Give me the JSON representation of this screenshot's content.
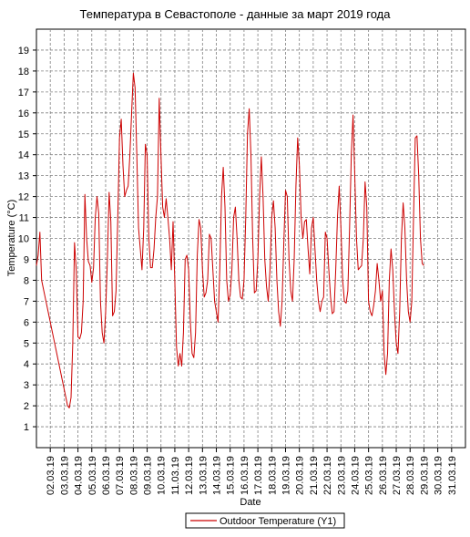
{
  "chart_data": {
    "type": "line",
    "title": "Температура в Севастополе - данные за март 2019 года",
    "xlabel": "Date",
    "ylabel": "Temperature (°C)",
    "ylim": [
      0,
      20
    ],
    "yticks": [
      1,
      2,
      3,
      4,
      5,
      6,
      7,
      8,
      9,
      10,
      11,
      12,
      13,
      14,
      15,
      16,
      17,
      18,
      19
    ],
    "x_range": [
      "01.03.19",
      "31.03.19 (end)"
    ],
    "x_ticks": [
      "02.03.19",
      "03.03.19",
      "04.03.19",
      "05.03.19",
      "06.03.19",
      "07.03.19",
      "08.03.19",
      "09.03.19",
      "10.03.19",
      "11.03.19",
      "12.03.19",
      "13.03.19",
      "14.03.19",
      "15.03.19",
      "16.03.19",
      "17.03.19",
      "18.03.19",
      "19.03.19",
      "20.03.19",
      "21.03.19",
      "22.03.19",
      "23.03.19",
      "24.03.19",
      "25.03.19",
      "26.03.19",
      "27.03.19",
      "28.03.19",
      "29.03.19",
      "30.03.19",
      "31.03.19"
    ],
    "grid": true,
    "legend_position": "bottom-center",
    "series": [
      {
        "name": "Outdoor Temperature (Y1)",
        "color": "#cc0000",
        "day_start": 1.0,
        "day_step": 0.125,
        "values": [
          8.7,
          9.2,
          10.3,
          8.0,
          7.6,
          7.2,
          6.8,
          6.4,
          6.0,
          5.6,
          5.2,
          4.8,
          4.4,
          4.0,
          3.6,
          3.2,
          2.8,
          2.4,
          2.0,
          1.9,
          2.4,
          5.0,
          9.8,
          8.5,
          5.3,
          5.2,
          5.5,
          7.0,
          12.1,
          10.0,
          8.9,
          8.7,
          7.9,
          8.6,
          11.0,
          12.0,
          11.2,
          7.0,
          5.5,
          5.0,
          6.5,
          9.0,
          12.2,
          10.8,
          6.3,
          6.5,
          7.5,
          11.0,
          14.8,
          15.7,
          13.5,
          12.0,
          12.3,
          12.5,
          14.0,
          16.0,
          17.9,
          17.2,
          14.0,
          10.5,
          9.5,
          8.5,
          10.5,
          14.5,
          14.0,
          10.0,
          8.6,
          8.6,
          9.5,
          11.0,
          12.0,
          16.7,
          14.0,
          11.5,
          11.0,
          11.9,
          11.0,
          10.0,
          8.5,
          10.8,
          8.0,
          4.8,
          3.9,
          4.5,
          3.9,
          5.5,
          9.0,
          9.2,
          8.5,
          6.0,
          4.5,
          4.3,
          5.5,
          9.2,
          10.9,
          10.5,
          8.5,
          7.2,
          7.4,
          8.0,
          10.2,
          10.0,
          8.5,
          7.0,
          6.5,
          6.0,
          8.5,
          12.0,
          13.4,
          11.5,
          8.0,
          7.0,
          7.3,
          8.5,
          11.0,
          11.5,
          10.0,
          8.0,
          7.2,
          7.1,
          8.0,
          11.0,
          15.0,
          16.2,
          14.0,
          10.0,
          7.4,
          7.5,
          9.0,
          12.0,
          13.9,
          12.0,
          9.0,
          7.7,
          7.0,
          8.5,
          11.0,
          11.8,
          10.5,
          8.0,
          6.5,
          5.8,
          7.0,
          9.8,
          12.3,
          12.0,
          9.0,
          7.5,
          7.0,
          9.0,
          12.5,
          14.8,
          13.5,
          11.0,
          10.0,
          10.8,
          10.9,
          9.5,
          8.3,
          10.5,
          11.0,
          9.5,
          8.0,
          7.0,
          6.5,
          7.0,
          7.2,
          10.3,
          10.0,
          8.5,
          7.2,
          6.4,
          6.5,
          8.5,
          11.0,
          12.5,
          10.5,
          8.0,
          7.0,
          6.9,
          7.5,
          10.5,
          14.0,
          15.9,
          13.0,
          10.0,
          8.5,
          8.6,
          8.7,
          10.0,
          12.7,
          11.5,
          7.0,
          6.5,
          6.3,
          6.8,
          7.5,
          8.8,
          8.0,
          7.0,
          7.5,
          4.5,
          3.5,
          4.5,
          8.0,
          9.5,
          8.5,
          6.5,
          5.0,
          4.5,
          6.5,
          10.0,
          11.7,
          10.5,
          8.0,
          6.5,
          6.0,
          7.0,
          11.0,
          14.8,
          14.9,
          13.0,
          10.0,
          8.8,
          8.7
        ]
      }
    ]
  }
}
